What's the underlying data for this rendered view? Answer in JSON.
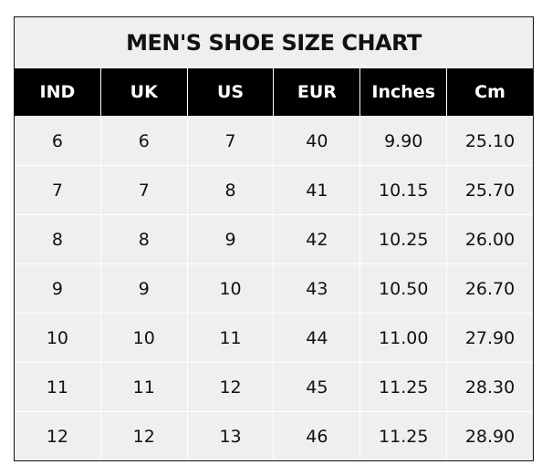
{
  "title": "MEN'S SHOE SIZE CHART",
  "headers": [
    "IND",
    "UK",
    "US",
    "EUR",
    "Inches",
    "Cm"
  ],
  "rows": [
    [
      "6",
      "6",
      "7",
      "40",
      "9.90",
      "25.10"
    ],
    [
      "7",
      "7",
      "8",
      "41",
      "10.15",
      "25.70"
    ],
    [
      "8",
      "8",
      "9",
      "42",
      "10.25",
      "26.00"
    ],
    [
      "9",
      "9",
      "10",
      "43",
      "10.50",
      "26.70"
    ],
    [
      "10",
      "10",
      "11",
      "44",
      "11.00",
      "27.90"
    ],
    [
      "11",
      "11",
      "12",
      "45",
      "11.25",
      "28.30"
    ],
    [
      "12",
      "12",
      "13",
      "46",
      "11.25",
      "28.90"
    ]
  ],
  "colors": {
    "header_bg": "#000000",
    "header_text": "#ffffff",
    "body_bg": "#efefef",
    "grid": "#ffffff"
  }
}
